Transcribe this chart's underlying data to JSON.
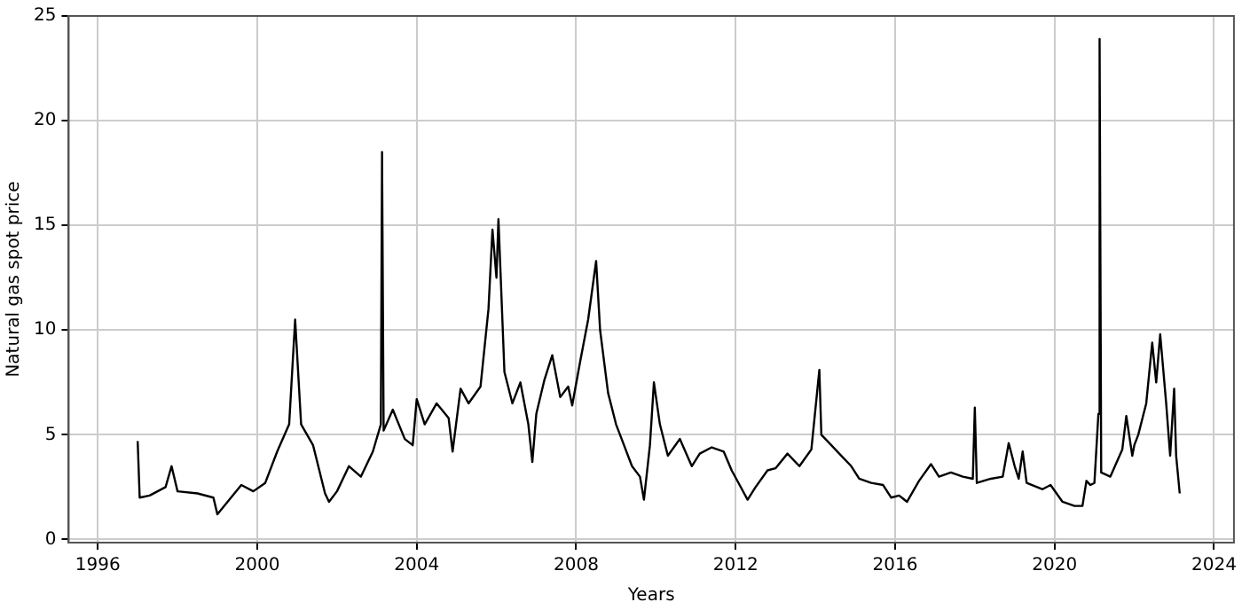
{
  "chart_data": {
    "type": "line",
    "xlabel": "Years",
    "ylabel": "Natural gas spot price",
    "grid": true,
    "legend": false,
    "marker": "none",
    "line_style": "solid",
    "xlim": [
      1995.27,
      2024.5
    ],
    "xticks": [
      1996,
      2000,
      2004,
      2008,
      2012,
      2016,
      2020,
      2024
    ],
    "ylim": [
      -0.15,
      25
    ],
    "yticks": [
      0,
      5,
      10,
      15,
      20,
      25
    ],
    "series": [
      {
        "color": "#000000",
        "x": [
          1997.0,
          1997.05,
          1997.3,
          1997.7,
          1997.85,
          1998.0,
          1998.5,
          1998.9,
          1999.0,
          1999.3,
          1999.6,
          1999.9,
          2000.2,
          2000.5,
          2000.8,
          2000.95,
          2001.1,
          2001.4,
          2001.7,
          2001.8,
          2002.0,
          2002.3,
          2002.6,
          2002.9,
          2003.1,
          2003.13,
          2003.17,
          2003.4,
          2003.7,
          2003.9,
          2004.0,
          2004.2,
          2004.5,
          2004.8,
          2004.9,
          2005.1,
          2005.3,
          2005.6,
          2005.8,
          2005.9,
          2006.0,
          2006.05,
          2006.2,
          2006.4,
          2006.6,
          2006.8,
          2006.9,
          2007.0,
          2007.2,
          2007.4,
          2007.6,
          2007.8,
          2007.9,
          2008.1,
          2008.3,
          2008.5,
          2008.6,
          2008.8,
          2009.0,
          2009.2,
          2009.4,
          2009.6,
          2009.7,
          2009.85,
          2009.95,
          2010.1,
          2010.3,
          2010.6,
          2010.9,
          2011.1,
          2011.4,
          2011.7,
          2011.9,
          2012.1,
          2012.3,
          2012.5,
          2012.8,
          2013.0,
          2013.3,
          2013.6,
          2013.9,
          2014.1,
          2014.15,
          2014.4,
          2014.7,
          2014.9,
          2015.1,
          2015.4,
          2015.7,
          2015.9,
          2016.1,
          2016.3,
          2016.6,
          2016.9,
          2017.1,
          2017.4,
          2017.7,
          2017.95,
          2018.0,
          2018.05,
          2018.4,
          2018.7,
          2018.85,
          2019.0,
          2019.1,
          2019.2,
          2019.3,
          2019.7,
          2019.9,
          2020.2,
          2020.5,
          2020.7,
          2020.8,
          2020.9,
          2021.0,
          2021.1,
          2021.13,
          2021.17,
          2021.4,
          2021.7,
          2021.8,
          2021.95,
          2022.0,
          2022.1,
          2022.3,
          2022.45,
          2022.55,
          2022.65,
          2022.8,
          2022.9,
          2023.0,
          2023.05,
          2023.14
        ],
        "values": [
          4.7,
          2.0,
          2.1,
          2.5,
          3.5,
          2.3,
          2.2,
          2.0,
          1.2,
          1.9,
          2.6,
          2.3,
          2.7,
          4.2,
          5.5,
          10.5,
          5.5,
          4.5,
          2.2,
          1.8,
          2.3,
          3.5,
          3.0,
          4.2,
          5.5,
          18.5,
          5.2,
          6.2,
          4.8,
          4.5,
          6.7,
          5.5,
          6.5,
          5.8,
          4.2,
          7.2,
          6.5,
          7.3,
          11.0,
          14.8,
          12.5,
          15.3,
          8.0,
          6.5,
          7.5,
          5.5,
          3.7,
          6.0,
          7.6,
          8.8,
          6.8,
          7.3,
          6.4,
          8.5,
          10.5,
          13.3,
          10.0,
          7.0,
          5.5,
          4.5,
          3.5,
          3.0,
          1.9,
          4.5,
          7.5,
          5.5,
          4.0,
          4.8,
          3.5,
          4.1,
          4.4,
          4.2,
          3.3,
          2.6,
          1.9,
          2.5,
          3.3,
          3.4,
          4.1,
          3.5,
          4.3,
          8.1,
          5.0,
          4.5,
          3.9,
          3.5,
          2.9,
          2.7,
          2.6,
          2.0,
          2.1,
          1.8,
          2.8,
          3.6,
          3.0,
          3.2,
          3.0,
          2.9,
          6.3,
          2.7,
          2.9,
          3.0,
          4.6,
          3.5,
          2.9,
          4.2,
          2.7,
          2.4,
          2.6,
          1.8,
          1.6,
          1.6,
          2.8,
          2.6,
          2.7,
          6.0,
          23.9,
          3.2,
          3.0,
          4.3,
          5.9,
          4.0,
          4.5,
          5.0,
          6.5,
          9.4,
          7.5,
          9.8,
          6.5,
          4.0,
          7.2,
          4.0,
          2.2
        ]
      }
    ]
  }
}
